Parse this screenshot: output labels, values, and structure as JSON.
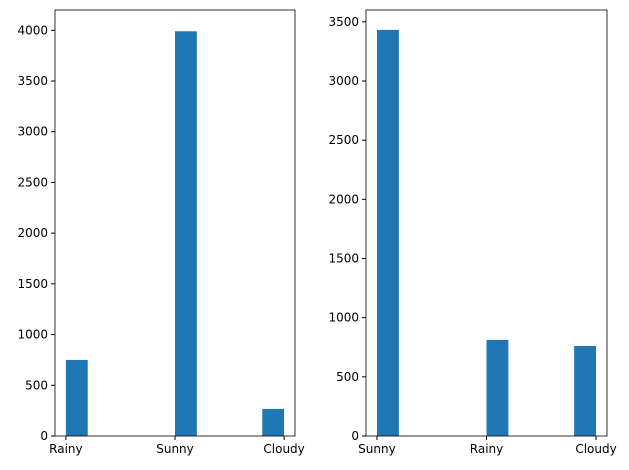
{
  "chart_data": [
    {
      "type": "bar",
      "categories": [
        "Rainy",
        "Sunny",
        "Cloudy"
      ],
      "values": [
        750,
        3990,
        267
      ],
      "color": "#1f77b4",
      "ylim": [
        0,
        4200
      ],
      "yticks": [
        0,
        500,
        1000,
        1500,
        2000,
        2500,
        3000,
        3500,
        4000
      ]
    },
    {
      "type": "bar",
      "categories": [
        "Sunny",
        "Rainy",
        "Cloudy"
      ],
      "values": [
        3432,
        812,
        761
      ],
      "color": "#1f77b4",
      "ylim": [
        0,
        3600
      ],
      "yticks": [
        0,
        500,
        1000,
        1500,
        2000,
        2500,
        3000,
        3500
      ]
    }
  ]
}
